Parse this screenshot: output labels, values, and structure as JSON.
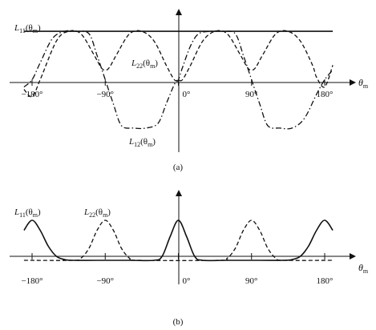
{
  "chart_data": [
    {
      "type": "line",
      "panel_label": "(a)",
      "xaxis": {
        "name": "θ",
        "subscript": "m",
        "ticks": [
          -180,
          -90,
          0,
          90,
          180
        ],
        "tick_labels": [
          "−180°",
          "−90°",
          "0°",
          "90°",
          "180°"
        ],
        "range": [
          -190,
          190
        ]
      },
      "yaxis": {
        "range": [
          -1.25,
          1.25
        ],
        "labels": false
      },
      "grid": false,
      "series": [
        {
          "name": "L11(θm)",
          "label": {
            "main": "L",
            "sub1": "11",
            "mid": "(θ",
            "sub2": "m",
            "end": ")"
          },
          "style": "solid",
          "x": [
            -190,
            190
          ],
          "y": [
            1.0,
            1.0
          ]
        },
        {
          "name": "L22(θm)",
          "label": {
            "main": "L",
            "sub1": "22",
            "mid": "(θ",
            "sub2": "m",
            "end": ")"
          },
          "style": "dashed",
          "x": [
            -190,
            -180,
            -170,
            -150,
            -135,
            -120,
            -105,
            -95,
            -90,
            -85,
            -75,
            -60,
            -45,
            -30,
            -15,
            -5,
            0,
            5,
            15,
            30,
            45,
            60,
            75,
            85,
            90,
            95,
            105,
            120,
            135,
            150,
            165,
            170,
            180,
            190
          ],
          "y": [
            -0.2,
            -0.35,
            0.0,
            0.8,
            1.0,
            0.95,
            0.55,
            0.25,
            0.2,
            0.25,
            0.55,
            0.95,
            1.0,
            0.8,
            0.3,
            0.0,
            0.0,
            0.0,
            0.3,
            0.8,
            1.0,
            0.95,
            0.55,
            0.25,
            0.2,
            0.25,
            0.55,
            0.95,
            1.0,
            0.8,
            0.3,
            0.05,
            -0.15,
            0.3
          ]
        },
        {
          "name": "L12(θm)",
          "label": {
            "main": "L",
            "sub1": "12",
            "mid": "(θ",
            "sub2": "m",
            "end": ")"
          },
          "style": "dashdot",
          "x": [
            -190,
            -180,
            -170,
            -155,
            -140,
            -125,
            -110,
            -100,
            -90,
            -80,
            -70,
            -55,
            -40,
            -25,
            -15,
            -5,
            0,
            5,
            15,
            25,
            40,
            55,
            70,
            80,
            90,
            100,
            110,
            125,
            140,
            155,
            170,
            180,
            190
          ],
          "y": [
            -0.15,
            0.0,
            0.35,
            0.85,
            1.0,
            1.0,
            0.95,
            0.5,
            0.0,
            -0.5,
            -0.95,
            -1.0,
            -1.0,
            -0.9,
            -0.5,
            -0.1,
            0.0,
            0.25,
            0.7,
            0.95,
            1.0,
            1.0,
            0.95,
            0.5,
            0.0,
            -0.5,
            -0.95,
            -1.0,
            -1.0,
            -0.8,
            -0.3,
            0.0,
            0.2
          ]
        }
      ]
    },
    {
      "type": "line",
      "panel_label": "(b)",
      "xaxis": {
        "name": "θ",
        "subscript": "m",
        "ticks": [
          -180,
          -90,
          0,
          90,
          180
        ],
        "tick_labels": [
          "−180°",
          "−90°",
          "0°",
          "90°",
          "180°"
        ],
        "range": [
          -190,
          190
        ]
      },
      "yaxis": {
        "range": [
          -0.2,
          1.3
        ],
        "labels": false
      },
      "grid": false,
      "series": [
        {
          "name": "L11(θm)",
          "label": {
            "main": "L",
            "sub1": "11",
            "mid": "(θ",
            "sub2": "m",
            "end": ")"
          },
          "style": "solid",
          "x": [
            -190,
            -180,
            -170,
            -160,
            -150,
            -140,
            -130,
            -100,
            -60,
            -30,
            -20,
            -10,
            0,
            10,
            20,
            30,
            60,
            100,
            130,
            140,
            150,
            160,
            170,
            180,
            190
          ],
          "y": [
            0.75,
            1.0,
            0.75,
            0.35,
            0.1,
            0.02,
            0.0,
            0.0,
            0.0,
            0.0,
            0.1,
            0.6,
            1.0,
            0.6,
            0.1,
            0.0,
            0.0,
            0.0,
            0.0,
            0.02,
            0.1,
            0.35,
            0.75,
            1.0,
            0.75
          ]
        },
        {
          "name": "L22(θm)",
          "label": {
            "main": "L",
            "sub1": "22",
            "mid": "(θ",
            "sub2": "m",
            "end": ")"
          },
          "style": "dashed",
          "x": [
            -190,
            -130,
            -120,
            -110,
            -100,
            -90,
            -80,
            -70,
            -60,
            -50,
            50,
            60,
            70,
            80,
            90,
            100,
            110,
            120,
            130,
            190
          ],
          "y": [
            0.0,
            0.0,
            0.05,
            0.3,
            0.75,
            1.0,
            0.75,
            0.3,
            0.05,
            0.0,
            0.0,
            0.05,
            0.3,
            0.75,
            1.0,
            0.75,
            0.3,
            0.05,
            0.0,
            0.0
          ]
        }
      ]
    }
  ]
}
